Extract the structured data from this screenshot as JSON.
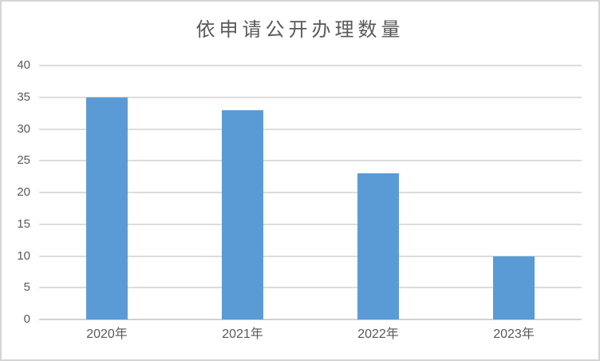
{
  "chart_data": {
    "type": "bar",
    "title": "依申请公开办理数量",
    "categories": [
      "2020年",
      "2021年",
      "2022年",
      "2023年"
    ],
    "values": [
      35,
      33,
      23,
      10
    ],
    "xlabel": "",
    "ylabel": "",
    "ylim": [
      0,
      40
    ],
    "yticks": [
      0,
      5,
      10,
      15,
      20,
      25,
      30,
      35,
      40
    ],
    "grid": true,
    "legend_position": "none",
    "bar_color": "#5B9BD5",
    "gridline_color": "#DCDCDC",
    "axis_line_color": "#D2D2D2",
    "text_color": "#595959",
    "frame_border_color": "#D4D4D4",
    "background_color": "#FFFFFF"
  }
}
